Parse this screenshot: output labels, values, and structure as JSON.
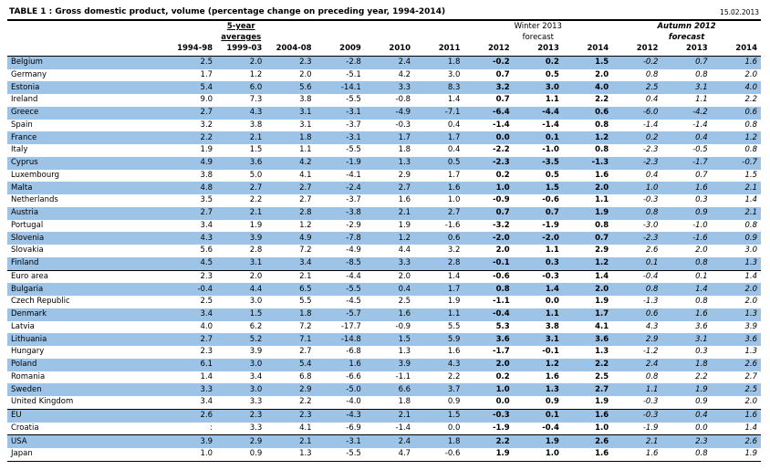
{
  "title": "TABLE 1 : Gross domestic product, volume (percentage change on preceding year, 1994-2014)",
  "date": "15.02.2013",
  "headers": {
    "avg_group_line1": "5-year",
    "avg_group_line2": "averages",
    "winter_line1": "Winter 2013",
    "winter_line2": "forecast",
    "autumn_line1": "Autumn 2012",
    "autumn_line2": "forecast",
    "years": [
      "1994-98",
      "1999-03",
      "2004-08",
      "2009",
      "2010",
      "2011",
      "2012",
      "2013",
      "2014",
      "2012",
      "2013",
      "2014"
    ]
  },
  "rows": [
    {
      "name": "Belgium",
      "v": [
        "2.5",
        "2.0",
        "2.3",
        "-2.8",
        "2.4",
        "1.8",
        "-0.2",
        "0.2",
        "1.5",
        "-0.2",
        "0.7",
        "1.6"
      ]
    },
    {
      "name": "Germany",
      "v": [
        "1.7",
        "1.2",
        "2.0",
        "-5.1",
        "4.2",
        "3.0",
        "0.7",
        "0.5",
        "2.0",
        "0.8",
        "0.8",
        "2.0"
      ]
    },
    {
      "name": "Estonia",
      "v": [
        "5.4",
        "6.0",
        "5.6",
        "-14.1",
        "3.3",
        "8.3",
        "3.2",
        "3.0",
        "4.0",
        "2.5",
        "3.1",
        "4.0"
      ]
    },
    {
      "name": "Ireland",
      "v": [
        "9.0",
        "7.3",
        "3.8",
        "-5.5",
        "-0.8",
        "1.4",
        "0.7",
        "1.1",
        "2.2",
        "0.4",
        "1.1",
        "2.2"
      ]
    },
    {
      "name": "Greece",
      "v": [
        "2.7",
        "4.3",
        "3.1",
        "-3.1",
        "-4.9",
        "-7.1",
        "-6.4",
        "-4.4",
        "0.6",
        "-6.0",
        "-4.2",
        "0.6"
      ]
    },
    {
      "name": "Spain",
      "v": [
        "3.2",
        "3.8",
        "3.1",
        "-3.7",
        "-0.3",
        "0.4",
        "-1.4",
        "-1.4",
        "0.8",
        "-1.4",
        "-1.4",
        "0.8"
      ]
    },
    {
      "name": "France",
      "v": [
        "2.2",
        "2.1",
        "1.8",
        "-3.1",
        "1.7",
        "1.7",
        "0.0",
        "0.1",
        "1.2",
        "0.2",
        "0.4",
        "1.2"
      ]
    },
    {
      "name": "Italy",
      "v": [
        "1.9",
        "1.5",
        "1.1",
        "-5.5",
        "1.8",
        "0.4",
        "-2.2",
        "-1.0",
        "0.8",
        "-2.3",
        "-0.5",
        "0.8"
      ]
    },
    {
      "name": "Cyprus",
      "v": [
        "4.9",
        "3.6",
        "4.2",
        "-1.9",
        "1.3",
        "0.5",
        "-2.3",
        "-3.5",
        "-1.3",
        "-2.3",
        "-1.7",
        "-0.7"
      ]
    },
    {
      "name": "Luxembourg",
      "v": [
        "3.8",
        "5.0",
        "4.1",
        "-4.1",
        "2.9",
        "1.7",
        "0.2",
        "0.5",
        "1.6",
        "0.4",
        "0.7",
        "1.5"
      ]
    },
    {
      "name": "Malta",
      "v": [
        "4.8",
        "2.7",
        "2.7",
        "-2.4",
        "2.7",
        "1.6",
        "1.0",
        "1.5",
        "2.0",
        "1.0",
        "1.6",
        "2.1"
      ]
    },
    {
      "name": "Netherlands",
      "v": [
        "3.5",
        "2.2",
        "2.7",
        "-3.7",
        "1.6",
        "1.0",
        "-0.9",
        "-0.6",
        "1.1",
        "-0.3",
        "0.3",
        "1.4"
      ]
    },
    {
      "name": "Austria",
      "v": [
        "2.7",
        "2.1",
        "2.8",
        "-3.8",
        "2.1",
        "2.7",
        "0.7",
        "0.7",
        "1.9",
        "0.8",
        "0.9",
        "2.1"
      ]
    },
    {
      "name": "Portugal",
      "v": [
        "3.4",
        "1.9",
        "1.2",
        "-2.9",
        "1.9",
        "-1.6",
        "-3.2",
        "-1.9",
        "0.8",
        "-3.0",
        "-1.0",
        "0.8"
      ]
    },
    {
      "name": "Slovenia",
      "v": [
        "4.3",
        "3.9",
        "4.9",
        "-7.8",
        "1.2",
        "0.6",
        "-2.0",
        "-2.0",
        "0.7",
        "-2.3",
        "-1.6",
        "0.9"
      ]
    },
    {
      "name": "Slovakia",
      "v": [
        "5.6",
        "2.8",
        "7.2",
        "-4.9",
        "4.4",
        "3.2",
        "2.0",
        "1.1",
        "2.9",
        "2.6",
        "2.0",
        "3.0"
      ]
    },
    {
      "name": "Finland",
      "v": [
        "4.5",
        "3.1",
        "3.4",
        "-8.5",
        "3.3",
        "2.8",
        "-0.1",
        "0.3",
        "1.2",
        "0.1",
        "0.8",
        "1.3"
      ]
    },
    {
      "name": "Euro area",
      "v": [
        "2.3",
        "2.0",
        "2.1",
        "-4.4",
        "2.0",
        "1.4",
        "-0.6",
        "-0.3",
        "1.4",
        "-0.4",
        "0.1",
        "1.4"
      ]
    },
    {
      "name": "Bulgaria",
      "v": [
        "-0.4",
        "4.4",
        "6.5",
        "-5.5",
        "0.4",
        "1.7",
        "0.8",
        "1.4",
        "2.0",
        "0.8",
        "1.4",
        "2.0"
      ]
    },
    {
      "name": "Czech Republic",
      "v": [
        "2.5",
        "3.0",
        "5.5",
        "-4.5",
        "2.5",
        "1.9",
        "-1.1",
        "0.0",
        "1.9",
        "-1.3",
        "0.8",
        "2.0"
      ]
    },
    {
      "name": "Denmark",
      "v": [
        "3.4",
        "1.5",
        "1.8",
        "-5.7",
        "1.6",
        "1.1",
        "-0.4",
        "1.1",
        "1.7",
        "0.6",
        "1.6",
        "1.3"
      ]
    },
    {
      "name": "Latvia",
      "v": [
        "4.0",
        "6.2",
        "7.2",
        "-17.7",
        "-0.9",
        "5.5",
        "5.3",
        "3.8",
        "4.1",
        "4.3",
        "3.6",
        "3.9"
      ]
    },
    {
      "name": "Lithuania",
      "v": [
        "2.7",
        "5.2",
        "7.1",
        "-14.8",
        "1.5",
        "5.9",
        "3.6",
        "3.1",
        "3.6",
        "2.9",
        "3.1",
        "3.6"
      ]
    },
    {
      "name": "Hungary",
      "v": [
        "2.3",
        "3.9",
        "2.7",
        "-6.8",
        "1.3",
        "1.6",
        "-1.7",
        "-0.1",
        "1.3",
        "-1.2",
        "0.3",
        "1.3"
      ]
    },
    {
      "name": "Poland",
      "v": [
        "6.1",
        "3.0",
        "5.4",
        "1.6",
        "3.9",
        "4.3",
        "2.0",
        "1.2",
        "2.2",
        "2.4",
        "1.8",
        "2.6"
      ]
    },
    {
      "name": "Romania",
      "v": [
        "1.4",
        "3.4",
        "6.8",
        "-6.6",
        "-1.1",
        "2.2",
        "0.2",
        "1.6",
        "2.5",
        "0.8",
        "2.2",
        "2.7"
      ]
    },
    {
      "name": "Sweden",
      "v": [
        "3.3",
        "3.0",
        "2.9",
        "-5.0",
        "6.6",
        "3.7",
        "1.0",
        "1.3",
        "2.7",
        "1.1",
        "1.9",
        "2.5"
      ]
    },
    {
      "name": "United Kingdom",
      "v": [
        "3.4",
        "3.3",
        "2.2",
        "-4.0",
        "1.8",
        "0.9",
        "0.0",
        "0.9",
        "1.9",
        "-0.3",
        "0.9",
        "2.0"
      ]
    },
    {
      "name": "EU",
      "v": [
        "2.6",
        "2.3",
        "2.3",
        "-4.3",
        "2.1",
        "1.5",
        "-0.3",
        "0.1",
        "1.6",
        "-0.3",
        "0.4",
        "1.6"
      ]
    },
    {
      "name": "Croatia",
      "v": [
        ":",
        "3.3",
        "4.1",
        "-6.9",
        "-1.4",
        "0.0",
        "-1.9",
        "-0.4",
        "1.0",
        "-1.9",
        "0.0",
        "1.4"
      ]
    },
    {
      "name": "USA",
      "v": [
        "3.9",
        "2.9",
        "2.1",
        "-3.1",
        "2.4",
        "1.8",
        "2.2",
        "1.9",
        "2.6",
        "2.1",
        "2.3",
        "2.6"
      ]
    },
    {
      "name": "Japan",
      "v": [
        "1.0",
        "0.9",
        "1.3",
        "-5.5",
        "4.7",
        "-0.6",
        "1.9",
        "1.0",
        "1.6",
        "1.6",
        "0.8",
        "1.9"
      ]
    }
  ],
  "colors": {
    "highlight_row": "#9dc3e6",
    "text": "#000000"
  }
}
